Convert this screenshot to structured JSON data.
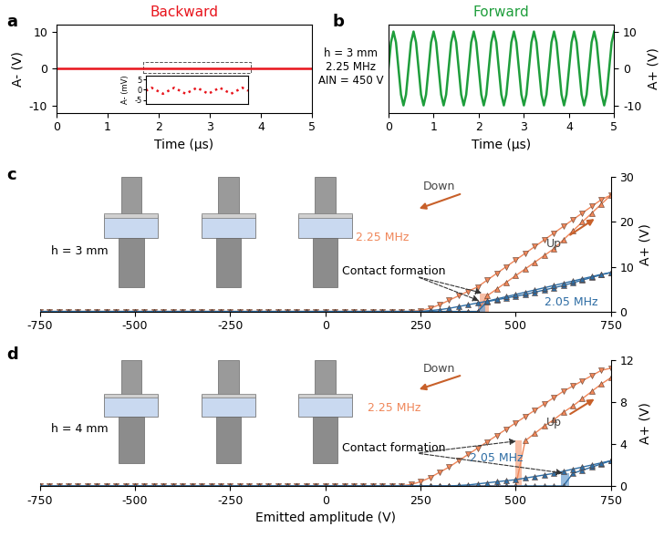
{
  "chart_data": [
    {
      "panel": "a",
      "type": "line",
      "title": "Backward",
      "xlabel": "Time (µs)",
      "ylabel": "A- (V)",
      "xlim": [
        0,
        5
      ],
      "xticks": [
        0,
        1,
        2,
        3,
        4,
        5
      ],
      "ylim": [
        -12,
        12
      ],
      "yticks": [
        -10,
        0,
        10
      ],
      "line_style": "solid",
      "x": [
        0,
        5
      ],
      "series": [
        {
          "color": "#e8141c",
          "values": [
            0,
            0
          ]
        }
      ]
    },
    {
      "inset_of": "a",
      "type": "line",
      "ylabel": "A- (mV)",
      "xlim": [
        1.7,
        3.7
      ],
      "ylim": [
        -7,
        7
      ],
      "yticks": [
        -5,
        0,
        5
      ],
      "tick_labels": "y",
      "line_style": "dotted",
      "x": [
        1.7,
        1.811,
        1.922,
        2.033,
        2.144,
        2.255,
        2.366,
        2.477,
        2.588,
        2.699,
        2.81,
        2.921,
        3.032,
        3.143,
        3.254,
        3.365,
        3.476,
        3.587,
        3.698
      ],
      "series": [
        {
          "color": "#e8141c",
          "values": [
            -0.5,
            1,
            -0.5,
            -2,
            -0.5,
            1,
            -0.5,
            -2,
            -0.5,
            1,
            -0.5,
            -2,
            -0.5,
            1,
            -0.5,
            -2,
            -0.5,
            1,
            -0.5
          ]
        }
      ]
    },
    {
      "panel": "b",
      "type": "line",
      "title": "Forward",
      "xlabel": "Time (µs)",
      "ylabel": "A+ (V)",
      "xlim": [
        0,
        5
      ],
      "xticks": [
        0,
        1,
        2,
        3,
        4,
        5
      ],
      "ylim": [
        -12,
        12
      ],
      "yticks": [
        -10,
        0,
        10
      ],
      "line_style": "solid",
      "annotations": [
        "h = 3 mm",
        "2.25 MHz",
        "AIN = 450 V"
      ],
      "x": [
        0,
        0.056,
        0.111,
        0.167,
        0.222,
        0.278,
        0.333,
        0.389,
        0.444,
        0.5,
        0.556,
        0.611,
        0.667,
        0.722,
        0.778,
        0.833,
        0.889,
        0.944,
        1,
        1.056,
        1.111,
        1.167,
        1.222,
        1.278,
        1.333,
        1.389,
        1.444,
        1.5,
        1.556,
        1.611,
        1.667,
        1.722,
        1.778,
        1.833,
        1.889,
        1.944,
        2,
        2.056,
        2.111,
        2.167,
        2.222,
        2.278,
        2.333,
        2.389,
        2.444,
        2.5,
        2.556,
        2.611,
        2.667,
        2.722,
        2.778,
        2.833,
        2.889,
        2.944,
        3,
        3.056,
        3.111,
        3.167,
        3.222,
        3.278,
        3.333,
        3.389,
        3.444,
        3.5,
        3.556,
        3.611,
        3.667,
        3.722,
        3.778,
        3.833,
        3.889,
        3.944,
        4,
        4.056,
        4.111,
        4.167,
        4.222,
        4.278,
        4.333,
        4.389,
        4.444,
        4.5,
        4.556,
        4.611,
        4.667,
        4.722,
        4.778,
        4.833,
        4.889,
        4.944,
        5
      ],
      "series": [
        {
          "color": "#1f9e3c",
          "values": [
            0,
            7.07,
            10,
            7.07,
            0,
            -7.07,
            -10,
            -7.07,
            0,
            7.07,
            10,
            7.07,
            0,
            -7.07,
            -10,
            -7.07,
            0,
            7.07,
            10,
            7.07,
            0,
            -7.07,
            -10,
            -7.07,
            0,
            7.07,
            10,
            7.07,
            0,
            -7.07,
            -10,
            -7.07,
            0,
            7.07,
            10,
            7.07,
            0,
            -7.07,
            -10,
            -7.07,
            0,
            7.07,
            10,
            7.07,
            0,
            -7.07,
            -10,
            -7.07,
            0,
            7.07,
            10,
            7.07,
            0,
            -7.07,
            -10,
            -7.07,
            0,
            7.07,
            10,
            7.07,
            0,
            -7.07,
            -10,
            -7.07,
            0,
            7.07,
            10,
            7.07,
            0,
            -7.07,
            -10,
            -7.07,
            0,
            7.07,
            10,
            7.07,
            0,
            -7.07,
            -10,
            -7.07,
            0,
            7.07,
            10,
            7.07,
            0,
            -7.07,
            -10,
            -7.07,
            0,
            7.07,
            10
          ]
        }
      ]
    },
    {
      "panel": "c",
      "type": "line",
      "ylabel": "A+ (V)",
      "xlim": [
        -750,
        750
      ],
      "xticks": [
        -750,
        -500,
        -250,
        0,
        250,
        500,
        750
      ],
      "ylim": [
        0,
        30
      ],
      "yticks": [
        0,
        10,
        20,
        30
      ],
      "annotations": {
        "h": "h = 3 mm",
        "down": "Down",
        "up": "Up",
        "contact": "Contact formation"
      },
      "x": [
        -750,
        -725,
        -700,
        -675,
        -650,
        -625,
        -600,
        -575,
        -550,
        -525,
        -500,
        -475,
        -450,
        -425,
        -400,
        -375,
        -350,
        -325,
        -300,
        -275,
        -250,
        -225,
        -200,
        -175,
        -150,
        -125,
        -100,
        -75,
        -50,
        -25,
        0,
        25,
        50,
        75,
        100,
        125,
        150,
        175,
        200,
        225,
        250,
        275,
        300,
        325,
        350,
        375,
        400,
        425,
        450,
        475,
        500,
        525,
        550,
        575,
        600,
        625,
        650,
        675,
        700,
        725,
        750
      ],
      "series": [
        {
          "name": "2.25 MHz",
          "color": "#f0875a",
          "marker": "triangle_down",
          "line_style": "solid",
          "values": [
            0,
            0,
            0,
            0,
            0,
            0,
            0,
            0,
            0,
            0,
            0,
            0,
            0,
            0,
            0,
            0,
            0,
            0,
            0,
            0,
            0,
            0,
            0,
            0,
            0,
            0,
            0,
            0,
            0,
            0,
            0,
            0,
            0,
            0,
            0,
            0,
            0,
            0,
            0,
            0,
            0.2,
            0.7,
            1.5,
            2.5,
            3.5,
            4.5,
            5.5,
            7,
            8.5,
            10,
            11.5,
            13,
            14.5,
            16,
            17.5,
            19,
            20.5,
            22,
            23.5,
            25,
            26
          ]
        },
        {
          "name": "2.25 MHz",
          "color": "#f0875a",
          "marker": "triangle_up",
          "line_style": "solid",
          "values": [
            0,
            0,
            0,
            0,
            0,
            0,
            0,
            0,
            0,
            0,
            0,
            0,
            0,
            0,
            0,
            0,
            0,
            0,
            0,
            0,
            0,
            0,
            0,
            0,
            0,
            0,
            0,
            0,
            0,
            0,
            0,
            0,
            0,
            0,
            0,
            0,
            0,
            0,
            0,
            0,
            0,
            0,
            0,
            0,
            0,
            0,
            0,
            3.5,
            5,
            6.5,
            8,
            9.5,
            11,
            12.5,
            14,
            16,
            18,
            20,
            22,
            24,
            26
          ]
        },
        {
          "name": "2.05 MHz",
          "color": "#2e6da4",
          "marker": "triangle_up",
          "line_style": "solid",
          "values": [
            0,
            0,
            0,
            0,
            0,
            0,
            0,
            0,
            0,
            0,
            0,
            0,
            0,
            0,
            0,
            0,
            0,
            0,
            0,
            0,
            0,
            0,
            0,
            0,
            0,
            0,
            0,
            0,
            0,
            0,
            0,
            0,
            0,
            0,
            0,
            0,
            0,
            0,
            0,
            0,
            0,
            0,
            0,
            0,
            0,
            0,
            0,
            2.2,
            2.6,
            3,
            3.4,
            3.8,
            4.3,
            4.8,
            5.3,
            5.8,
            6.4,
            7,
            7.6,
            8.2,
            8.7
          ]
        },
        {
          "name": "2.05 MHz",
          "color": "#2e6da4",
          "marker": "triangle_up",
          "line_style": "solid",
          "values": [
            0,
            0,
            0,
            0,
            0,
            0,
            0,
            0,
            0,
            0,
            0,
            0,
            0,
            0,
            0,
            0,
            0,
            0,
            0,
            0,
            0,
            0,
            0,
            0,
            0,
            0,
            0,
            0,
            0,
            0,
            0,
            0,
            0,
            0,
            0,
            0,
            0,
            0,
            0,
            0,
            0,
            0.2,
            0.4,
            0.7,
            1.1,
            1.5,
            1.9,
            2.3,
            2.8,
            3.3,
            3.8,
            4.3,
            4.8,
            5.3,
            5.8,
            6.3,
            6.8,
            7.3,
            7.8,
            8.3,
            8.7
          ]
        }
      ],
      "spans": [
        {
          "x0": 405,
          "x1": 430,
          "y0": 0,
          "y1": 4,
          "color": "#f4a582"
        },
        {
          "x0": 400,
          "x1": 420,
          "y0": 0,
          "y1": 2.2,
          "color": "#6a9fd0"
        }
      ]
    },
    {
      "panel": "d",
      "type": "line",
      "xlabel": "Emitted amplitude (V)",
      "ylabel": "A+ (V)",
      "xlim": [
        -750,
        750
      ],
      "xticks": [
        -750,
        -500,
        -250,
        0,
        250,
        500,
        750
      ],
      "ylim": [
        0,
        12
      ],
      "yticks": [
        0,
        4,
        8,
        12
      ],
      "annotations": {
        "h": "h = 4 mm",
        "down": "Down",
        "up": "Up",
        "contact": "Contact formation"
      },
      "x": [
        -750,
        -725,
        -700,
        -675,
        -650,
        -625,
        -600,
        -575,
        -550,
        -525,
        -500,
        -475,
        -450,
        -425,
        -400,
        -375,
        -350,
        -325,
        -300,
        -275,
        -250,
        -225,
        -200,
        -175,
        -150,
        -125,
        -100,
        -75,
        -50,
        -25,
        0,
        25,
        50,
        75,
        100,
        125,
        150,
        175,
        200,
        225,
        250,
        275,
        300,
        325,
        350,
        375,
        400,
        425,
        450,
        475,
        500,
        525,
        550,
        575,
        600,
        625,
        650,
        675,
        700,
        725,
        750
      ],
      "series": [
        {
          "name": "2.25 MHz",
          "color": "#f0875a",
          "marker": "triangle_down",
          "line_style": "solid",
          "values": [
            0,
            0,
            0,
            0,
            0,
            0,
            0,
            0,
            0,
            0,
            0,
            0,
            0,
            0,
            0,
            0,
            0,
            0,
            0,
            0,
            0,
            0,
            0,
            0,
            0,
            0,
            0,
            0,
            0,
            0,
            0,
            0,
            0,
            0,
            0,
            0,
            0,
            0,
            0,
            0.15,
            0.4,
            0.8,
            1.3,
            1.8,
            2.4,
            3,
            3.6,
            4.2,
            4.8,
            5.4,
            6,
            6.6,
            7.2,
            7.8,
            8.4,
            9,
            9.5,
            10,
            10.5,
            11,
            11.2
          ]
        },
        {
          "name": "2.25 MHz",
          "color": "#f0875a",
          "marker": "triangle_up",
          "line_style": "solid",
          "values": [
            0,
            0,
            0,
            0,
            0,
            0,
            0,
            0,
            0,
            0,
            0,
            0,
            0,
            0,
            0,
            0,
            0,
            0,
            0,
            0,
            0,
            0,
            0,
            0,
            0,
            0,
            0,
            0,
            0,
            0,
            0,
            0,
            0,
            0,
            0,
            0,
            0,
            0,
            0,
            0,
            0,
            0,
            0,
            0,
            0,
            0,
            0,
            0,
            0,
            0,
            0,
            4.3,
            5,
            5.7,
            6.3,
            7,
            7.6,
            8.3,
            9,
            9.7,
            10.3
          ]
        },
        {
          "name": "2.05 MHz",
          "color": "#2e6da4",
          "marker": "triangle_up",
          "line_style": "solid",
          "values": [
            0,
            0,
            0,
            0,
            0,
            0,
            0,
            0,
            0,
            0,
            0,
            0,
            0,
            0,
            0,
            0,
            0,
            0,
            0,
            0,
            0,
            0,
            0,
            0,
            0,
            0,
            0,
            0,
            0,
            0,
            0,
            0,
            0,
            0,
            0,
            0,
            0,
            0,
            0,
            0,
            0,
            0,
            0,
            0,
            0,
            0,
            0,
            0,
            0,
            0,
            0,
            0,
            0,
            0,
            0,
            0,
            1.2,
            1.5,
            1.8,
            2.1,
            2.4
          ]
        },
        {
          "name": "2.05 MHz",
          "color": "#2e6da4",
          "marker": "triangle_up",
          "line_style": "solid",
          "values": [
            0,
            0,
            0,
            0,
            0,
            0,
            0,
            0,
            0,
            0,
            0,
            0,
            0,
            0,
            0,
            0,
            0,
            0,
            0,
            0,
            0,
            0,
            0,
            0,
            0,
            0,
            0,
            0,
            0,
            0,
            0,
            0,
            0,
            0,
            0,
            0,
            0,
            0,
            0,
            0,
            0,
            0,
            0,
            0,
            0.05,
            0.1,
            0.2,
            0.3,
            0.4,
            0.5,
            0.6,
            0.75,
            0.9,
            1.05,
            1.2,
            1.4,
            1.6,
            1.8,
            2,
            2.2,
            2.4
          ]
        }
      ],
      "spans": [
        {
          "x0": 500,
          "x1": 515,
          "y0": 0,
          "y1": 4.3,
          "color": "#f4a582"
        },
        {
          "x0": 620,
          "x1": 640,
          "y0": 0,
          "y1": 1.2,
          "color": "#6a9fd0"
        }
      ]
    }
  ]
}
